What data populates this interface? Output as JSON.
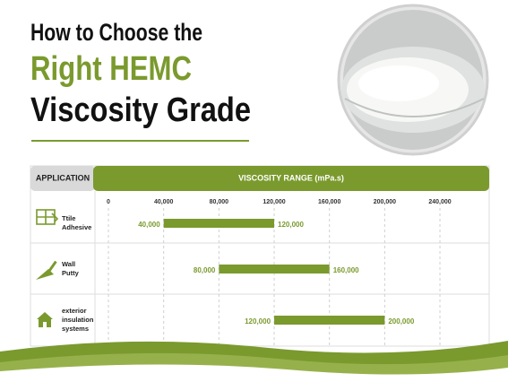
{
  "chart_data": {
    "type": "range-bar",
    "title_lines": [
      "How to Choose the",
      "Right HEMC",
      "Viscosity Grade"
    ],
    "column_headers": [
      "APPLICATION",
      "VISCOSITY RANGE (mPa.s)"
    ],
    "categories": [
      [
        "Ttile",
        "Adhesive"
      ],
      [
        "Wall",
        "Putty"
      ],
      [
        "exterior",
        "insulation",
        "systems"
      ]
    ],
    "values": [
      [
        40000,
        120000
      ],
      [
        80000,
        160000
      ],
      [
        120000,
        200000
      ]
    ],
    "value_labels": [
      [
        "40,000",
        "120,000"
      ],
      [
        "80,000",
        "160,000"
      ],
      [
        "120,000",
        "200,000"
      ]
    ],
    "color": "#7a9a2e",
    "xlim": [
      0,
      275000
    ],
    "xticks": [
      0,
      {
        "value": 40000,
        "label": "40,000"
      },
      {
        "value": 80000,
        "label": "80,000"
      },
      {
        "value": 120000,
        "label": "120,000"
      },
      {
        "value": 160000,
        "label": "160,000"
      },
      {
        "value": 200000,
        "label": "200,000"
      },
      {
        "value": 240000,
        "label": "240,000"
      }
    ],
    "grid": true
  }
}
